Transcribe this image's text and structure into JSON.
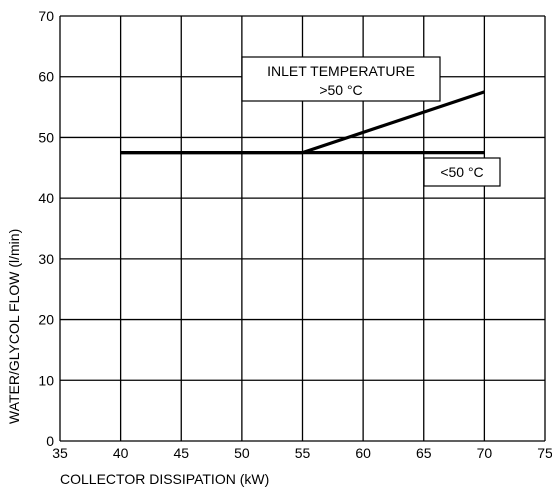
{
  "chart_data": {
    "type": "line",
    "title": "",
    "xlabel": "COLLECTOR DISSIPATION (kW)",
    "ylabel": "WATER/GLYCOL FLOW (l/min)",
    "xlim": [
      35,
      75
    ],
    "ylim": [
      0,
      70
    ],
    "xticks": [
      35,
      40,
      45,
      50,
      55,
      60,
      65,
      70,
      75
    ],
    "yticks": [
      0,
      10,
      20,
      30,
      40,
      50,
      60,
      70
    ],
    "grid": true,
    "series": [
      {
        "name": ">50 °C",
        "x": [
          40,
          55,
          70
        ],
        "y": [
          47.5,
          47.5,
          57.5
        ]
      },
      {
        "name": "<50 °C",
        "x": [
          40,
          70
        ],
        "y": [
          47.5,
          47.5
        ]
      }
    ],
    "annotations": [
      {
        "lines": [
          "INLET TEMPERATURE",
          ">50 °C"
        ],
        "target": ">50 °C"
      },
      {
        "lines": [
          "<50 °C"
        ],
        "target": "<50 °C"
      }
    ]
  }
}
